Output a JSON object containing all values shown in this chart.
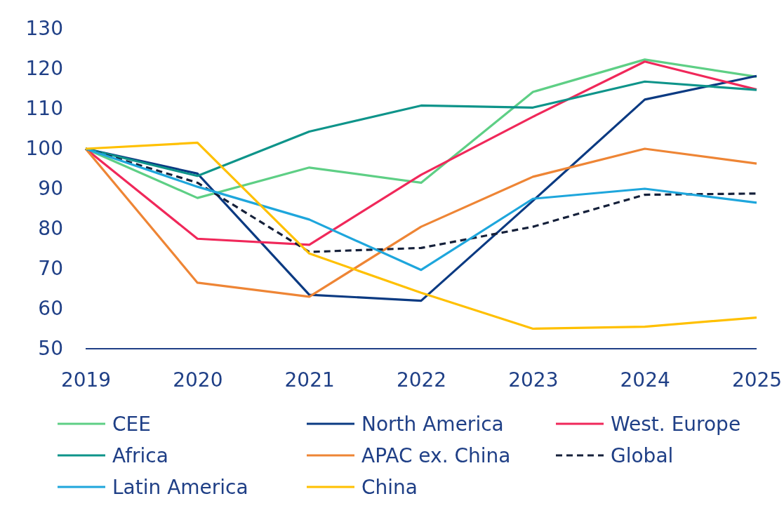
{
  "chart_data": {
    "type": "line",
    "categories": [
      "2019",
      "2020",
      "2021",
      "2022",
      "2023",
      "2024",
      "2025"
    ],
    "ylim": [
      50,
      130
    ],
    "yticks": [
      50,
      60,
      70,
      80,
      90,
      100,
      110,
      120,
      130
    ],
    "grid": false,
    "legend": "bottom",
    "marker": "none",
    "series": [
      {
        "name": "CEE",
        "color": "#5ecf85",
        "values": [
          100,
          87.7,
          95.3,
          91.5,
          114.2,
          122.3,
          118
        ]
      },
      {
        "name": "North America",
        "color": "#0b3a82",
        "values": [
          100,
          93.8,
          63.5,
          62,
          87,
          112.3,
          118.2
        ]
      },
      {
        "name": "West. Europe",
        "color": "#f0285a",
        "values": [
          100,
          77.5,
          76,
          93.5,
          108,
          121.8,
          114.8
        ]
      },
      {
        "name": "Africa",
        "color": "#0e948a",
        "values": [
          100,
          93.2,
          104.3,
          110.8,
          110.3,
          116.8,
          114.7
        ]
      },
      {
        "name": "APAC ex. China",
        "color": "#ee8535",
        "values": [
          100,
          66.5,
          63,
          80.5,
          93,
          100,
          96.3
        ]
      },
      {
        "name": "Global",
        "color": "#15203a",
        "line_style": "dashed",
        "values": [
          100,
          91.5,
          74.2,
          75.2,
          80.5,
          88.5,
          88.8
        ]
      },
      {
        "name": "Latin America",
        "color": "#1ea6dc",
        "values": [
          100,
          90.5,
          82.3,
          69.7,
          87.5,
          90,
          86.5
        ]
      },
      {
        "name": "China",
        "color": "#ffc000",
        "values": [
          100,
          101.5,
          73.8,
          64,
          55,
          55.5,
          57.8
        ]
      }
    ]
  }
}
